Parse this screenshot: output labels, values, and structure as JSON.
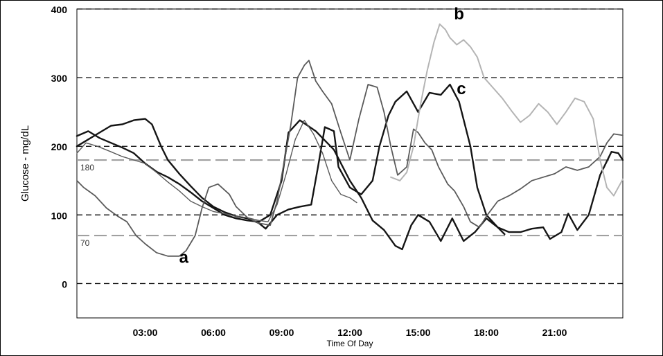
{
  "chart_data": {
    "type": "line",
    "xlabel": "Time Of Day",
    "ylabel": "Glucose - mg/dL",
    "xlim": [
      0,
      24
    ],
    "ylim": [
      -50,
      400
    ],
    "x_ticks": [
      {
        "value": 3,
        "label": "03:00"
      },
      {
        "value": 6,
        "label": "06:00"
      },
      {
        "value": 9,
        "label": "09:00"
      },
      {
        "value": 12,
        "label": "12:00"
      },
      {
        "value": 15,
        "label": "15:00"
      },
      {
        "value": 18,
        "label": "18:00"
      },
      {
        "value": 21,
        "label": "21:00"
      }
    ],
    "y_ticks": [
      {
        "value": 0,
        "label": "0"
      },
      {
        "value": 100,
        "label": "100"
      },
      {
        "value": 200,
        "label": "200"
      },
      {
        "value": 300,
        "label": "300"
      },
      {
        "value": 400,
        "label": "400"
      }
    ],
    "gridlines": [
      0,
      100,
      200,
      300,
      400
    ],
    "target_range": {
      "high": {
        "value": 180,
        "label": "180"
      },
      "low": {
        "value": 70,
        "label": "70"
      }
    },
    "annotations": [
      {
        "text": "a",
        "x": 4.7,
        "y": 30
      },
      {
        "text": "b",
        "x": 16.8,
        "y": 385
      },
      {
        "text": "c",
        "x": 16.9,
        "y": 276
      }
    ],
    "colors": {
      "dark": "#151515",
      "medium": "#5a5a5a",
      "light": "#b4b4b4",
      "grid": "#000000",
      "target": "#a0a0a0"
    },
    "series": [
      {
        "id": "s1",
        "color_key": "dark",
        "width": 2.4,
        "points": [
          [
            0,
            215
          ],
          [
            0.5,
            222
          ],
          [
            1,
            212
          ],
          [
            1.5,
            205
          ],
          [
            2,
            198
          ],
          [
            2.5,
            190
          ],
          [
            3,
            175
          ],
          [
            3.5,
            163
          ],
          [
            4,
            155
          ],
          [
            4.5,
            145
          ],
          [
            5,
            133
          ],
          [
            5.5,
            120
          ],
          [
            6,
            110
          ],
          [
            6.5,
            100
          ],
          [
            7,
            95
          ],
          [
            7.5,
            92
          ],
          [
            8,
            90
          ],
          [
            8.5,
            100
          ],
          [
            9,
            150
          ],
          [
            9.3,
            220
          ],
          [
            9.8,
            238
          ],
          [
            10.5,
            222
          ],
          [
            11.3,
            195
          ],
          [
            12,
            150
          ],
          [
            12.5,
            125
          ],
          [
            13,
            92
          ],
          [
            13.5,
            78
          ],
          [
            14,
            55
          ],
          [
            14.3,
            50
          ],
          [
            14.7,
            85
          ],
          [
            15,
            100
          ],
          [
            15.5,
            90
          ],
          [
            16,
            62
          ],
          [
            16.5,
            95
          ],
          [
            17,
            62
          ],
          [
            17.5,
            75
          ],
          [
            18,
            95
          ],
          [
            18.5,
            82
          ],
          [
            19,
            75
          ],
          [
            19.5,
            75
          ],
          [
            20,
            80
          ],
          [
            20.5,
            82
          ],
          [
            20.8,
            65
          ],
          [
            21.3,
            75
          ],
          [
            21.6,
            102
          ],
          [
            22,
            78
          ],
          [
            22.5,
            100
          ],
          [
            23,
            158
          ],
          [
            23.5,
            192
          ],
          [
            23.8,
            190
          ],
          [
            24,
            180
          ]
        ]
      },
      {
        "id": "s2",
        "color_key": "dark",
        "width": 2.4,
        "points": [
          [
            0,
            200
          ],
          [
            0.5,
            210
          ],
          [
            1,
            220
          ],
          [
            1.5,
            230
          ],
          [
            2,
            232
          ],
          [
            2.5,
            238
          ],
          [
            3,
            240
          ],
          [
            3.3,
            232
          ],
          [
            3.7,
            200
          ],
          [
            4,
            180
          ],
          [
            4.5,
            160
          ],
          [
            5,
            142
          ],
          [
            5.5,
            125
          ],
          [
            6,
            112
          ],
          [
            6.5,
            104
          ],
          [
            7,
            98
          ],
          [
            7.5,
            95
          ],
          [
            8,
            88
          ],
          [
            8.3,
            80
          ],
          [
            8.8,
            100
          ],
          [
            9.3,
            108
          ],
          [
            9.8,
            112
          ],
          [
            10.3,
            115
          ],
          [
            10.6,
            170
          ],
          [
            10.9,
            228
          ],
          [
            11.3,
            222
          ],
          [
            11.5,
            170
          ],
          [
            12,
            140
          ],
          [
            12.5,
            130
          ],
          [
            13,
            150
          ],
          [
            13.3,
            200
          ],
          [
            13.7,
            245
          ],
          [
            14,
            265
          ],
          [
            14.5,
            280
          ],
          [
            15,
            250
          ],
          [
            15.5,
            278
          ],
          [
            16,
            275
          ],
          [
            16.4,
            290
          ],
          [
            16.8,
            265
          ],
          [
            17.3,
            200
          ],
          [
            17.6,
            140
          ],
          [
            18,
            100
          ],
          [
            18.5,
            82
          ],
          [
            18.8,
            72
          ]
        ]
      },
      {
        "id": "s3",
        "color_key": "medium",
        "width": 1.8,
        "points": [
          [
            0,
            150
          ],
          [
            0.3,
            140
          ],
          [
            0.8,
            128
          ],
          [
            1.3,
            110
          ],
          [
            1.8,
            98
          ],
          [
            2.2,
            90
          ],
          [
            2.6,
            70
          ],
          [
            3,
            58
          ],
          [
            3.5,
            45
          ],
          [
            4,
            40
          ],
          [
            4.5,
            40
          ],
          [
            4.8,
            48
          ],
          [
            5.2,
            70
          ],
          [
            5.5,
            110
          ],
          [
            5.8,
            140
          ],
          [
            6.2,
            145
          ],
          [
            6.7,
            130
          ],
          [
            7,
            112
          ],
          [
            7.5,
            96
          ],
          [
            8,
            88
          ],
          [
            8.5,
            85
          ],
          [
            8.8,
            120
          ],
          [
            9.1,
            175
          ],
          [
            9.4,
            230
          ],
          [
            9.7,
            300
          ],
          [
            10,
            318
          ],
          [
            10.2,
            325
          ],
          [
            10.5,
            295
          ],
          [
            10.8,
            280
          ],
          [
            11.2,
            262
          ],
          [
            11.6,
            220
          ],
          [
            12,
            180
          ],
          [
            12.4,
            240
          ],
          [
            12.8,
            290
          ],
          [
            13.2,
            286
          ],
          [
            13.5,
            250
          ],
          [
            13.8,
            200
          ],
          [
            14.1,
            158
          ],
          [
            14.5,
            170
          ],
          [
            14.8,
            225
          ],
          [
            15,
            220
          ],
          [
            15.3,
            205
          ],
          [
            15.6,
            195
          ],
          [
            15.9,
            170
          ],
          [
            16.3,
            145
          ],
          [
            16.6,
            135
          ],
          [
            17,
            112
          ],
          [
            17.3,
            90
          ],
          [
            17.7,
            82
          ],
          [
            18,
            98
          ],
          [
            18.5,
            120
          ],
          [
            19,
            128
          ],
          [
            19.5,
            138
          ],
          [
            20,
            150
          ],
          [
            20.5,
            155
          ],
          [
            21,
            160
          ],
          [
            21.5,
            170
          ],
          [
            22,
            165
          ],
          [
            22.5,
            170
          ],
          [
            23,
            185
          ],
          [
            23.3,
            205
          ],
          [
            23.6,
            218
          ],
          [
            24,
            216
          ]
        ]
      },
      {
        "id": "s4",
        "color_key": "medium",
        "width": 1.4,
        "points": [
          [
            0,
            190
          ],
          [
            0.4,
            205
          ],
          [
            0.9,
            200
          ],
          [
            1.5,
            192
          ],
          [
            2,
            185
          ],
          [
            2.5,
            180
          ],
          [
            3,
            175
          ],
          [
            3.5,
            162
          ],
          [
            4,
            148
          ],
          [
            4.5,
            135
          ],
          [
            5,
            120
          ],
          [
            5.5,
            112
          ],
          [
            6,
            105
          ],
          [
            6.5,
            102
          ],
          [
            7,
            98
          ],
          [
            7.5,
            96
          ],
          [
            8,
            92
          ],
          [
            8.4,
            90
          ],
          [
            8.8,
            115
          ],
          [
            9.2,
            160
          ],
          [
            9.6,
            210
          ],
          [
            10,
            238
          ],
          [
            10.4,
            218
          ],
          [
            10.8,
            190
          ],
          [
            11.2,
            150
          ],
          [
            11.6,
            130
          ],
          [
            12,
            125
          ],
          [
            12.3,
            118
          ]
        ]
      },
      {
        "id": "s5",
        "color_key": "light",
        "width": 2.0,
        "points": [
          [
            13.8,
            155
          ],
          [
            14.2,
            150
          ],
          [
            14.5,
            162
          ],
          [
            14.8,
            200
          ],
          [
            15.1,
            260
          ],
          [
            15.4,
            310
          ],
          [
            15.7,
            352
          ],
          [
            15.95,
            378
          ],
          [
            16.2,
            370
          ],
          [
            16.4,
            358
          ],
          [
            16.7,
            348
          ],
          [
            17,
            355
          ],
          [
            17.3,
            345
          ],
          [
            17.6,
            330
          ],
          [
            17.9,
            300
          ],
          [
            18.3,
            285
          ],
          [
            18.7,
            270
          ],
          [
            19.1,
            252
          ],
          [
            19.5,
            235
          ],
          [
            19.9,
            245
          ],
          [
            20.3,
            262
          ],
          [
            20.7,
            250
          ],
          [
            21.1,
            232
          ],
          [
            21.5,
            250
          ],
          [
            21.9,
            270
          ],
          [
            22.3,
            265
          ],
          [
            22.7,
            240
          ],
          [
            23,
            180
          ],
          [
            23.3,
            140
          ],
          [
            23.6,
            128
          ],
          [
            23.8,
            140
          ],
          [
            24,
            152
          ]
        ]
      }
    ]
  }
}
